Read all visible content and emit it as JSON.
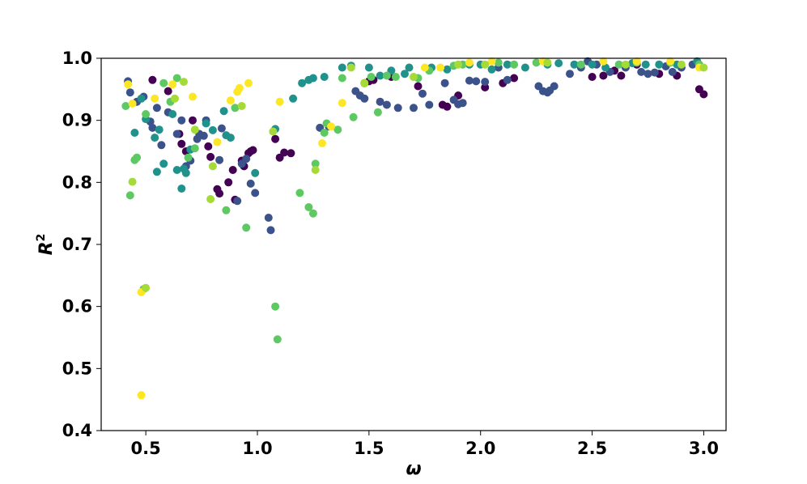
{
  "chart_data": {
    "type": "scatter",
    "title": "",
    "xlabel": "ω",
    "ylabel": "R",
    "ylabel_superscript": "2",
    "xlim": [
      0.3,
      3.1
    ],
    "ylim": [
      0.4,
      1.0
    ],
    "xticks": [
      0.5,
      1.0,
      1.5,
      2.0,
      2.5,
      3.0
    ],
    "xtick_labels": [
      "0.5",
      "1.0",
      "1.5",
      "2.0",
      "2.5",
      "3.0"
    ],
    "yticks": [
      0.4,
      0.5,
      0.6,
      0.7,
      0.8,
      0.9,
      1.0
    ],
    "ytick_labels": [
      "0.4",
      "0.5",
      "0.6",
      "0.7",
      "0.8",
      "0.9",
      "1.0"
    ],
    "grid": false,
    "legend": "none",
    "palette": [
      "#440154",
      "#3b528b",
      "#21918c",
      "#5ec962",
      "#fde725",
      "#a5db36"
    ],
    "series": [
      {
        "color": "#440154",
        "points": [
          [
            0.53,
            0.965
          ],
          [
            0.6,
            0.947
          ],
          [
            0.65,
            0.878
          ],
          [
            0.66,
            0.862
          ],
          [
            0.68,
            0.85
          ],
          [
            0.71,
            0.9
          ],
          [
            0.78,
            0.858
          ],
          [
            0.79,
            0.841
          ],
          [
            0.82,
            0.789
          ],
          [
            0.83,
            0.782
          ],
          [
            0.87,
            0.8
          ],
          [
            0.89,
            0.82
          ],
          [
            0.9,
            0.772
          ],
          [
            0.93,
            0.835
          ],
          [
            0.94,
            0.826
          ],
          [
            0.96,
            0.847
          ],
          [
            0.97,
            0.85
          ],
          [
            0.98,
            0.852
          ],
          [
            1.08,
            0.87
          ],
          [
            1.1,
            0.84
          ],
          [
            1.12,
            0.848
          ],
          [
            1.15,
            0.847
          ],
          [
            1.48,
            0.96
          ],
          [
            1.5,
            0.963
          ],
          [
            1.52,
            0.965
          ],
          [
            1.6,
            0.97
          ],
          [
            1.72,
            0.955
          ],
          [
            1.83,
            0.925
          ],
          [
            1.85,
            0.922
          ],
          [
            1.9,
            0.94
          ],
          [
            2.02,
            0.953
          ],
          [
            2.1,
            0.96
          ],
          [
            2.15,
            0.968
          ],
          [
            2.5,
            0.97
          ],
          [
            2.55,
            0.972
          ],
          [
            2.6,
            0.98
          ],
          [
            2.63,
            0.972
          ],
          [
            2.7,
            0.99
          ],
          [
            2.8,
            0.975
          ],
          [
            2.88,
            0.972
          ],
          [
            2.98,
            0.95
          ],
          [
            3.0,
            0.942
          ]
        ]
      },
      {
        "color": "#3b528b",
        "points": [
          [
            0.42,
            0.963
          ],
          [
            0.43,
            0.945
          ],
          [
            0.46,
            0.93
          ],
          [
            0.49,
            0.938
          ],
          [
            0.52,
            0.898
          ],
          [
            0.53,
            0.888
          ],
          [
            0.55,
            0.92
          ],
          [
            0.57,
            0.86
          ],
          [
            0.6,
            0.913
          ],
          [
            0.64,
            0.878
          ],
          [
            0.66,
            0.9
          ],
          [
            0.68,
            0.826
          ],
          [
            0.7,
            0.835
          ],
          [
            0.73,
            0.87
          ],
          [
            0.74,
            0.878
          ],
          [
            0.76,
            0.875
          ],
          [
            0.77,
            0.9
          ],
          [
            0.83,
            0.836
          ],
          [
            0.84,
            0.887
          ],
          [
            0.91,
            0.77
          ],
          [
            0.93,
            0.83
          ],
          [
            0.95,
            0.838
          ],
          [
            0.97,
            0.798
          ],
          [
            0.99,
            0.783
          ],
          [
            1.05,
            0.743
          ],
          [
            1.06,
            0.723
          ],
          [
            1.28,
            0.888
          ],
          [
            1.32,
            0.89
          ],
          [
            1.44,
            0.947
          ],
          [
            1.46,
            0.94
          ],
          [
            1.48,
            0.935
          ],
          [
            1.55,
            0.93
          ],
          [
            1.58,
            0.925
          ],
          [
            1.63,
            0.92
          ],
          [
            1.7,
            0.92
          ],
          [
            1.74,
            0.943
          ],
          [
            1.77,
            0.925
          ],
          [
            1.84,
            0.96
          ],
          [
            1.88,
            0.933
          ],
          [
            1.9,
            0.926
          ],
          [
            1.92,
            0.928
          ],
          [
            1.95,
            0.964
          ],
          [
            1.98,
            0.963
          ],
          [
            2.02,
            0.962
          ],
          [
            2.08,
            0.985
          ],
          [
            2.12,
            0.965
          ],
          [
            2.26,
            0.955
          ],
          [
            2.28,
            0.947
          ],
          [
            2.3,
            0.945
          ],
          [
            2.31,
            0.948
          ],
          [
            2.33,
            0.955
          ],
          [
            2.4,
            0.975
          ],
          [
            2.45,
            0.985
          ],
          [
            2.48,
            0.995
          ],
          [
            2.52,
            0.99
          ],
          [
            2.58,
            0.978
          ],
          [
            2.65,
            0.985
          ],
          [
            2.72,
            0.978
          ],
          [
            2.75,
            0.975
          ],
          [
            2.78,
            0.977
          ],
          [
            2.83,
            0.987
          ],
          [
            2.86,
            0.978
          ],
          [
            2.9,
            0.985
          ],
          [
            2.95,
            0.99
          ]
        ]
      },
      {
        "color": "#21918c",
        "points": [
          [
            0.45,
            0.88
          ],
          [
            0.48,
            0.935
          ],
          [
            0.5,
            0.902
          ],
          [
            0.54,
            0.872
          ],
          [
            0.55,
            0.817
          ],
          [
            0.56,
            0.885
          ],
          [
            0.58,
            0.83
          ],
          [
            0.62,
            0.91
          ],
          [
            0.64,
            0.82
          ],
          [
            0.66,
            0.79
          ],
          [
            0.67,
            0.822
          ],
          [
            0.68,
            0.815
          ],
          [
            0.7,
            0.853
          ],
          [
            0.77,
            0.895
          ],
          [
            0.8,
            0.884
          ],
          [
            0.85,
            0.915
          ],
          [
            0.86,
            0.876
          ],
          [
            0.88,
            0.872
          ],
          [
            0.99,
            0.815
          ],
          [
            1.08,
            0.886
          ],
          [
            1.16,
            0.935
          ],
          [
            1.2,
            0.96
          ],
          [
            1.23,
            0.965
          ],
          [
            1.25,
            0.968
          ],
          [
            1.3,
            0.97
          ],
          [
            1.38,
            0.985
          ],
          [
            1.42,
            0.988
          ],
          [
            1.5,
            0.985
          ],
          [
            1.55,
            0.972
          ],
          [
            1.6,
            0.98
          ],
          [
            1.66,
            0.975
          ],
          [
            1.68,
            0.985
          ],
          [
            1.78,
            0.985
          ],
          [
            1.85,
            0.982
          ],
          [
            1.95,
            0.99
          ],
          [
            2.0,
            0.99
          ],
          [
            2.05,
            0.982
          ],
          [
            2.12,
            0.99
          ],
          [
            2.2,
            0.985
          ],
          [
            2.3,
            0.99
          ],
          [
            2.35,
            0.992
          ],
          [
            2.42,
            0.99
          ],
          [
            2.5,
            0.99
          ],
          [
            2.56,
            0.985
          ],
          [
            2.68,
            0.992
          ],
          [
            2.74,
            0.99
          ],
          [
            2.8,
            0.99
          ],
          [
            2.88,
            0.99
          ],
          [
            2.97,
            0.995
          ]
        ]
      },
      {
        "color": "#5ec962",
        "points": [
          [
            0.41,
            0.923
          ],
          [
            0.43,
            0.779
          ],
          [
            0.45,
            0.836
          ],
          [
            0.46,
            0.84
          ],
          [
            0.49,
            0.628
          ],
          [
            0.5,
            0.91
          ],
          [
            0.58,
            0.96
          ],
          [
            0.61,
            0.93
          ],
          [
            0.64,
            0.968
          ],
          [
            0.69,
            0.84
          ],
          [
            0.72,
            0.855
          ],
          [
            0.86,
            0.755
          ],
          [
            0.9,
            0.92
          ],
          [
            0.95,
            0.727
          ],
          [
            1.08,
            0.6
          ],
          [
            1.09,
            0.547
          ],
          [
            1.19,
            0.783
          ],
          [
            1.23,
            0.76
          ],
          [
            1.25,
            0.75
          ],
          [
            1.26,
            0.83
          ],
          [
            1.3,
            0.88
          ],
          [
            1.31,
            0.895
          ],
          [
            1.36,
            0.885
          ],
          [
            1.38,
            0.968
          ],
          [
            1.43,
            0.905
          ],
          [
            1.51,
            0.97
          ],
          [
            1.54,
            0.913
          ],
          [
            1.58,
            0.972
          ],
          [
            1.62,
            0.97
          ],
          [
            1.72,
            0.968
          ],
          [
            1.77,
            0.98
          ],
          [
            1.88,
            0.988
          ],
          [
            1.92,
            0.99
          ],
          [
            2.08,
            0.993
          ],
          [
            2.15,
            0.99
          ],
          [
            2.25,
            0.993
          ],
          [
            2.45,
            0.99
          ],
          [
            2.62,
            0.99
          ],
          [
            2.7,
            0.993
          ],
          [
            2.85,
            0.993
          ],
          [
            2.98,
            0.99
          ]
        ]
      },
      {
        "color": "#fde725",
        "points": [
          [
            0.42,
            0.958
          ],
          [
            0.44,
            0.927
          ],
          [
            0.48,
            0.457
          ],
          [
            0.48,
            0.623
          ],
          [
            0.54,
            0.935
          ],
          [
            0.62,
            0.958
          ],
          [
            0.71,
            0.938
          ],
          [
            0.82,
            0.865
          ],
          [
            0.88,
            0.932
          ],
          [
            0.91,
            0.946
          ],
          [
            0.92,
            0.952
          ],
          [
            0.96,
            0.96
          ],
          [
            1.1,
            0.93
          ],
          [
            1.29,
            0.863
          ],
          [
            1.33,
            0.89
          ],
          [
            1.38,
            0.928
          ],
          [
            1.75,
            0.985
          ],
          [
            1.82,
            0.985
          ],
          [
            1.95,
            0.993
          ],
          [
            2.05,
            0.995
          ],
          [
            2.28,
            0.995
          ],
          [
            2.55,
            0.995
          ],
          [
            2.7,
            0.995
          ],
          [
            2.85,
            0.995
          ],
          [
            2.98,
            0.985
          ]
        ]
      },
      {
        "color": "#a5db36",
        "points": [
          [
            0.44,
            0.801
          ],
          [
            0.5,
            0.63
          ],
          [
            0.63,
            0.935
          ],
          [
            0.67,
            0.962
          ],
          [
            0.72,
            0.885
          ],
          [
            0.79,
            0.773
          ],
          [
            0.8,
            0.826
          ],
          [
            0.93,
            0.923
          ],
          [
            1.07,
            0.882
          ],
          [
            1.26,
            0.82
          ],
          [
            1.42,
            0.985
          ],
          [
            1.48,
            0.96
          ],
          [
            1.7,
            0.97
          ],
          [
            1.9,
            0.99
          ],
          [
            2.02,
            0.99
          ],
          [
            2.3,
            0.993
          ],
          [
            2.65,
            0.99
          ],
          [
            2.9,
            0.99
          ],
          [
            3.0,
            0.985
          ]
        ]
      }
    ]
  }
}
